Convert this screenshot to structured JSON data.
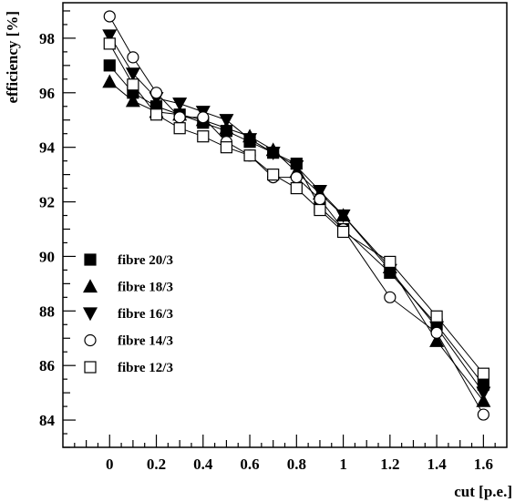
{
  "chart_data": {
    "type": "line",
    "title": "",
    "xlabel": "cut [p.e.]",
    "ylabel": "efficiency [%]",
    "xlim": [
      -0.2,
      1.7
    ],
    "ylim": [
      83.0,
      99.3
    ],
    "xticks": [
      0,
      0.2,
      0.4,
      0.6,
      0.8,
      1,
      1.2,
      1.4,
      1.6
    ],
    "xtick_labels": [
      "0",
      "0.2",
      "0.4",
      "0.6",
      "0.8",
      "1",
      "1.2",
      "1.4",
      "1.6"
    ],
    "yticks": [
      84,
      86,
      88,
      90,
      92,
      94,
      96,
      98
    ],
    "ytick_labels": [
      "84",
      "86",
      "88",
      "90",
      "92",
      "94",
      "96",
      "98"
    ],
    "grid": false,
    "legend_position": "lower-left",
    "x": [
      0,
      0.1,
      0.2,
      0.3,
      0.4,
      0.5,
      0.6,
      0.7,
      0.8,
      0.9,
      1.0,
      1.2,
      1.4,
      1.6
    ],
    "series": [
      {
        "name": "fibre 20/3",
        "marker": "square-filled",
        "values": [
          97.0,
          96.0,
          95.5,
          95.2,
          94.9,
          94.6,
          94.2,
          93.8,
          93.4,
          91.8,
          91.0,
          89.4,
          87.5,
          85.3
        ]
      },
      {
        "name": "fibre 18/3",
        "marker": "triangle-up-filled",
        "values": [
          96.4,
          95.7,
          95.3,
          95.2,
          95.0,
          94.7,
          94.4,
          93.9,
          93.1,
          92.3,
          91.5,
          89.6,
          86.9,
          84.7
        ]
      },
      {
        "name": "fibre 16/3",
        "marker": "triangle-down-filled",
        "values": [
          98.1,
          96.7,
          95.8,
          95.6,
          95.3,
          95.0,
          94.3,
          93.8,
          93.3,
          92.4,
          91.5,
          89.5,
          87.4,
          85.0
        ]
      },
      {
        "name": "fibre 14/3",
        "marker": "circle-open",
        "values": [
          98.8,
          97.3,
          96.0,
          95.1,
          95.1,
          94.2,
          93.7,
          92.9,
          92.9,
          92.1,
          91.0,
          88.5,
          87.2,
          84.2
        ]
      },
      {
        "name": "fibre 12/3",
        "marker": "square-open",
        "values": [
          97.8,
          96.3,
          95.2,
          94.7,
          94.4,
          94.0,
          93.7,
          93.0,
          92.5,
          91.7,
          90.9,
          89.8,
          87.8,
          85.7
        ]
      }
    ]
  }
}
